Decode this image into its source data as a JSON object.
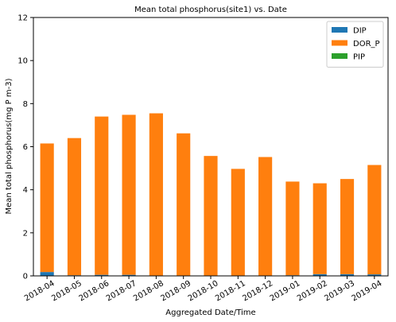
{
  "chart_data": {
    "type": "bar",
    "stacked": true,
    "title": "Mean total phosphorus(site1) vs. Date",
    "xlabel": "Aggregated Date/Time",
    "ylabel": "Mean total phosphorus(mg P m-3)",
    "ylim": [
      0,
      12
    ],
    "yticks": [
      0,
      2,
      4,
      6,
      8,
      10,
      12
    ],
    "grid": false,
    "legend_position": "top-right",
    "categories": [
      "2018-04",
      "2018-05",
      "2018-06",
      "2018-07",
      "2018-08",
      "2018-09",
      "2018-10",
      "2018-11",
      "2018-12",
      "2019-01",
      "2019-02",
      "2019-03",
      "2019-04"
    ],
    "series": [
      {
        "name": "DIP",
        "color": "#1f77b4",
        "values": [
          0.18,
          0.03,
          0.05,
          0.05,
          0.02,
          0.02,
          0.02,
          0.02,
          0.02,
          0.03,
          0.08,
          0.08,
          0.07
        ]
      },
      {
        "name": "DOR_P",
        "color": "#ff7f0e",
        "values": [
          5.97,
          6.37,
          7.35,
          7.43,
          7.53,
          6.6,
          5.55,
          4.95,
          5.5,
          4.35,
          4.22,
          4.42,
          5.08
        ]
      },
      {
        "name": "PIP",
        "color": "#2ca02c",
        "values": [
          0,
          0,
          0,
          0,
          0,
          0,
          0,
          0,
          0,
          0,
          0,
          0,
          0
        ]
      }
    ]
  }
}
